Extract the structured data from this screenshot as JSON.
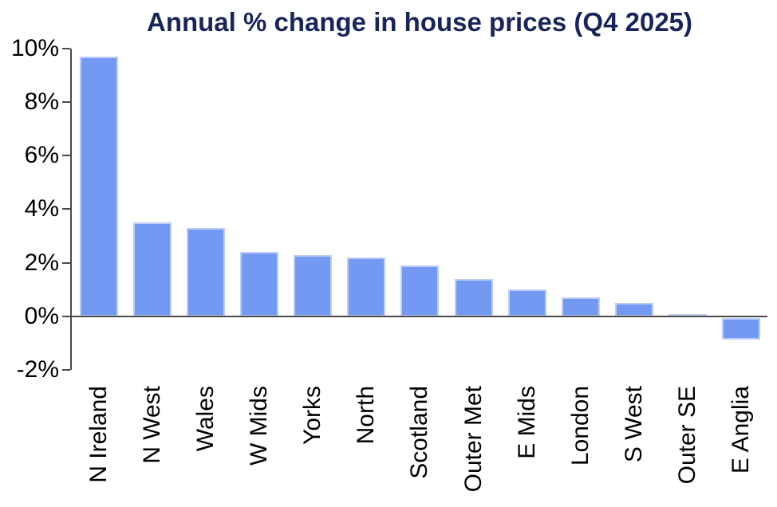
{
  "chart_data": {
    "type": "bar",
    "title": "Annual % change in house prices (Q4 2025)",
    "categories": [
      "N Ireland",
      "N West",
      "Wales",
      "W Mids",
      "Yorks",
      "North",
      "Scotland",
      "Outer Met",
      "E Mids",
      "London",
      "S West",
      "Outer SE",
      "E Anglia"
    ],
    "values": [
      9.7,
      3.5,
      3.3,
      2.4,
      2.3,
      2.2,
      1.9,
      1.4,
      1.0,
      0.7,
      0.5,
      0.1,
      -0.8
    ],
    "xlabel": "",
    "ylabel": "",
    "y_ticks": [
      10,
      8,
      6,
      4,
      2,
      0,
      -2
    ],
    "y_tick_labels": [
      "10%",
      "8%",
      "6%",
      "4%",
      "2%",
      "0%",
      "-2%"
    ],
    "ylim": [
      -2,
      10
    ],
    "grid": false,
    "legend_position": "none",
    "colors": {
      "bar_fill": "#7499F2",
      "bar_border": "#BCCDF8",
      "axis": "#4a4a4a",
      "title": "#17255A",
      "tick_text": "#000000"
    }
  }
}
